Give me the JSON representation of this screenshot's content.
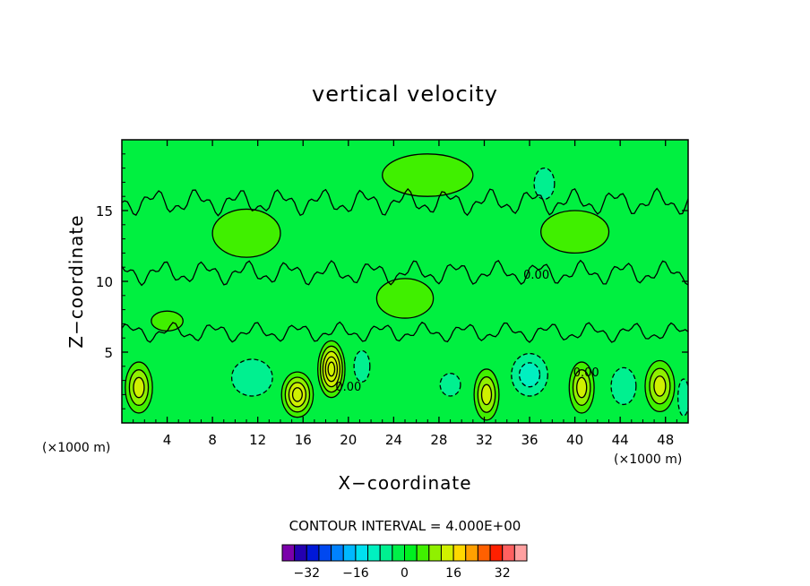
{
  "chart_data": {
    "type": "contour",
    "title": "vertical velocity",
    "xlabel": "X−coordinate",
    "ylabel": "Z−coordinate",
    "x_unit_left": "(×1000 m)",
    "x_unit_right": "(×1000 m)",
    "xlim": [
      0,
      50
    ],
    "ylim": [
      0,
      20
    ],
    "x_ticks": [
      4,
      8,
      12,
      16,
      20,
      24,
      28,
      32,
      36,
      40,
      44,
      48
    ],
    "x_tick_labels": [
      "4",
      "8",
      "12",
      "16",
      "20",
      "24",
      "28",
      "32",
      "36",
      "40",
      "44",
      "48"
    ],
    "y_ticks": [
      5,
      10,
      15
    ],
    "y_tick_labels": [
      "5",
      "10",
      "15"
    ],
    "contour_interval_text": "CONTOUR INTERVAL = 4.000E+00",
    "contour_interval": 4,
    "contour_labels": [
      {
        "text": "0.00",
        "x": 36.6,
        "y": 10.5
      },
      {
        "text": "0.00",
        "x": 20.0,
        "y": 2.6
      },
      {
        "text": "0.00",
        "x": 41.0,
        "y": 3.6
      }
    ],
    "colorbar": {
      "levels": [
        -36,
        -32,
        -28,
        -24,
        -20,
        -16,
        -12,
        -8,
        -4,
        0,
        4,
        8,
        12,
        16,
        20,
        24,
        28,
        32,
        36
      ],
      "labels": [
        "−32",
        "−16",
        "0",
        "16",
        "32"
      ],
      "label_values": [
        -32,
        -16,
        0,
        16,
        32
      ],
      "colors": [
        "#7a00aa",
        "#2400b0",
        "#0018d8",
        "#0048f0",
        "#0082ff",
        "#00b8ff",
        "#00e0f0",
        "#00f0c0",
        "#00f090",
        "#00f048",
        "#00f020",
        "#40f000",
        "#90f000",
        "#d0f000",
        "#ffd800",
        "#ffa000",
        "#ff6000",
        "#ff2000",
        "#ff6060",
        "#ffa0a0"
      ]
    },
    "fields": [
      {
        "sign": 1,
        "amplitude": 3.2,
        "x": 1.5,
        "y": 2.5,
        "sx": 1.2,
        "sy": 1.8
      },
      {
        "sign": 1,
        "amplitude": 4.5,
        "x": 15.5,
        "y": 2.0,
        "sx": 1.4,
        "sy": 1.6
      },
      {
        "sign": 1,
        "amplitude": 5.2,
        "x": 18.5,
        "y": 3.8,
        "sx": 1.2,
        "sy": 2.0
      },
      {
        "sign": 1,
        "amplitude": 3.6,
        "x": 32.2,
        "y": 2.0,
        "sx": 1.1,
        "sy": 1.8
      },
      {
        "sign": 1,
        "amplitude": 3.8,
        "x": 40.6,
        "y": 2.5,
        "sx": 1.1,
        "sy": 1.8
      },
      {
        "sign": 1,
        "amplitude": 3.2,
        "x": 47.5,
        "y": 2.6,
        "sx": 1.3,
        "sy": 1.8
      },
      {
        "sign": -1,
        "amplitude": 1.6,
        "x": 11.5,
        "y": 3.2,
        "sx": 1.8,
        "sy": 1.3
      },
      {
        "sign": -1,
        "amplitude": 1.1,
        "x": 21.2,
        "y": 4.0,
        "sx": 0.7,
        "sy": 1.1
      },
      {
        "sign": -1,
        "amplitude": 1.0,
        "x": 29.0,
        "y": 2.7,
        "sx": 0.9,
        "sy": 0.8
      },
      {
        "sign": -1,
        "amplitude": 2.2,
        "x": 36.0,
        "y": 3.4,
        "sx": 1.6,
        "sy": 1.5
      },
      {
        "sign": -1,
        "amplitude": 1.6,
        "x": 44.3,
        "y": 2.6,
        "sx": 1.1,
        "sy": 1.3
      },
      {
        "sign": -1,
        "amplitude": 1.2,
        "x": 49.6,
        "y": 1.8,
        "sx": 0.5,
        "sy": 1.3
      },
      {
        "sign": -1,
        "amplitude": 0.9,
        "x": 37.3,
        "y": 16.9,
        "sx": 0.9,
        "sy": 1.1
      },
      {
        "sign": 1,
        "amplitude": 1.0,
        "x": 4.0,
        "y": 7.2,
        "sx": 1.4,
        "sy": 0.7
      },
      {
        "sign": 1,
        "amplitude": 1.0,
        "x": 11.0,
        "y": 13.4,
        "sx": 3.0,
        "sy": 1.7
      },
      {
        "sign": 1,
        "amplitude": 0.8,
        "x": 25.0,
        "y": 8.8,
        "sx": 2.5,
        "sy": 1.4
      },
      {
        "sign": 1,
        "amplitude": 0.8,
        "x": 40.0,
        "y": 13.5,
        "sx": 3.0,
        "sy": 1.5
      },
      {
        "sign": 1,
        "amplitude": 0.6,
        "x": 27.0,
        "y": 17.5,
        "sx": 4.0,
        "sy": 1.5
      }
    ]
  }
}
